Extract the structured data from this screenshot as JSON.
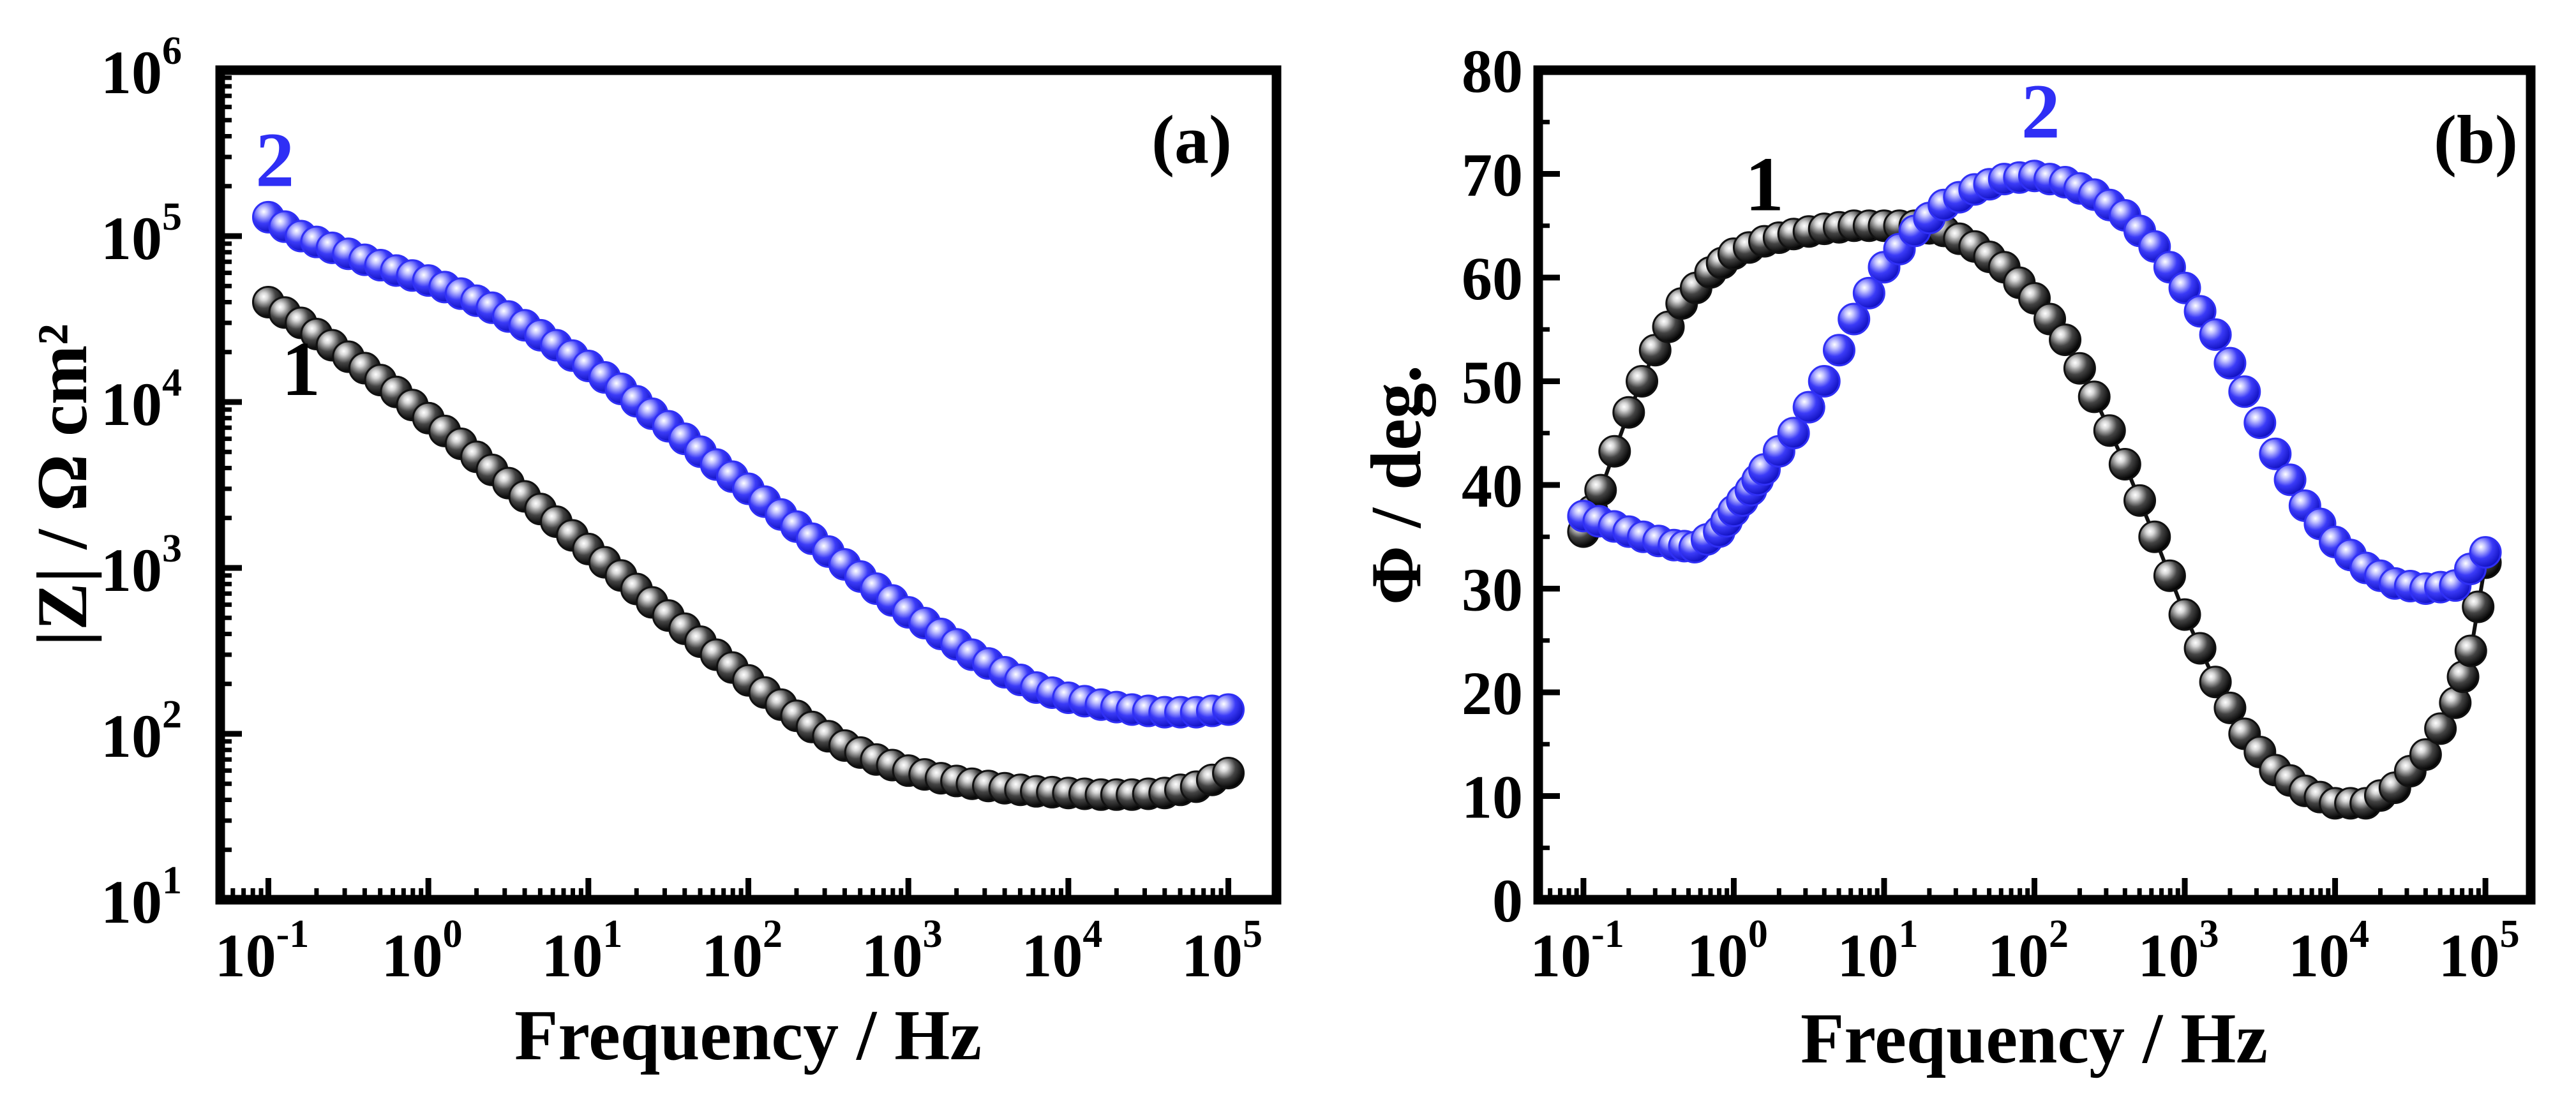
{
  "figure": {
    "colors": {
      "series_1": "#111111",
      "series_2": "#2f2ff5",
      "axis": "#000000"
    }
  },
  "chart_data": [
    {
      "type": "scatter",
      "panel_label": "(a)",
      "title": "",
      "xlabel": "Frequency / Hz",
      "ylabel": "|Z| / Ω cm²",
      "x_scale": "log",
      "y_scale": "log",
      "xlim": [
        0.05,
        200000
      ],
      "ylim": [
        10,
        1000000
      ],
      "x_ticks": [
        {
          "value": 0.1,
          "base": "10",
          "exp": "-1"
        },
        {
          "value": 1,
          "base": "10",
          "exp": "0"
        },
        {
          "value": 10,
          "base": "10",
          "exp": "1"
        },
        {
          "value": 100,
          "base": "10",
          "exp": "2"
        },
        {
          "value": 1000,
          "base": "10",
          "exp": "3"
        },
        {
          "value": 10000,
          "base": "10",
          "exp": "4"
        },
        {
          "value": 100000,
          "base": "10",
          "exp": "5"
        }
      ],
      "y_ticks": [
        {
          "value": 10,
          "base": "10",
          "exp": "1"
        },
        {
          "value": 100,
          "base": "10",
          "exp": "2"
        },
        {
          "value": 1000,
          "base": "10",
          "exp": "3"
        },
        {
          "value": 10000,
          "base": "10",
          "exp": "4"
        },
        {
          "value": 100000,
          "base": "10",
          "exp": "5"
        },
        {
          "value": 1000000,
          "base": "10",
          "exp": "6"
        }
      ],
      "series": [
        {
          "name": "1",
          "label_anchor": {
            "x": 0.16,
            "y": 11000
          },
          "connect_line": false,
          "points": [
            [
              0.1,
              40000
            ],
            [
              0.16,
              30000
            ],
            [
              0.25,
              22000
            ],
            [
              0.4,
              16000
            ],
            [
              0.63,
              11500
            ],
            [
              1,
              8000
            ],
            [
              1.6,
              5600
            ],
            [
              2.5,
              3900
            ],
            [
              4,
              2700
            ],
            [
              6.3,
              1900
            ],
            [
              10,
              1300
            ],
            [
              16,
              900
            ],
            [
              25,
              620
            ],
            [
              40,
              430
            ],
            [
              63,
              300
            ],
            [
              100,
              210
            ],
            [
              160,
              150
            ],
            [
              250,
              110
            ],
            [
              400,
              85
            ],
            [
              630,
              70
            ],
            [
              1000,
              60
            ],
            [
              1600,
              54
            ],
            [
              2500,
              50
            ],
            [
              4000,
              47
            ],
            [
              6300,
              45
            ],
            [
              10000,
              44
            ],
            [
              16000,
              43
            ],
            [
              25000,
              43
            ],
            [
              40000,
              44
            ],
            [
              63000,
              48
            ],
            [
              100000,
              58
            ]
          ]
        },
        {
          "name": "2",
          "label_anchor": {
            "x": 0.11,
            "y": 200000
          },
          "connect_line": false,
          "points": [
            [
              0.1,
              130000
            ],
            [
              0.16,
              100000
            ],
            [
              0.25,
              85000
            ],
            [
              0.4,
              72000
            ],
            [
              0.63,
              62000
            ],
            [
              1,
              54000
            ],
            [
              1.6,
              45000
            ],
            [
              2.5,
              37000
            ],
            [
              4,
              29000
            ],
            [
              6.3,
              22000
            ],
            [
              10,
              16500
            ],
            [
              16,
              12000
            ],
            [
              25,
              8500
            ],
            [
              40,
              6000
            ],
            [
              63,
              4200
            ],
            [
              100,
              3000
            ],
            [
              160,
              2100
            ],
            [
              250,
              1500
            ],
            [
              400,
              1050
            ],
            [
              630,
              750
            ],
            [
              1000,
              540
            ],
            [
              1600,
              400
            ],
            [
              2500,
              300
            ],
            [
              4000,
              235
            ],
            [
              6300,
              190
            ],
            [
              10000,
              165
            ],
            [
              16000,
              150
            ],
            [
              25000,
              140
            ],
            [
              40000,
              135
            ],
            [
              63000,
              135
            ],
            [
              100000,
              140
            ]
          ]
        }
      ]
    },
    {
      "type": "scatter",
      "panel_label": "(b)",
      "title": "",
      "xlabel": "Frequency / Hz",
      "ylabel": "Φ / deg.",
      "x_scale": "log",
      "y_scale": "linear",
      "xlim": [
        0.05,
        200000
      ],
      "ylim": [
        0,
        80
      ],
      "x_ticks": [
        {
          "value": 0.1,
          "base": "10",
          "exp": "-1"
        },
        {
          "value": 1,
          "base": "10",
          "exp": "0"
        },
        {
          "value": 10,
          "base": "10",
          "exp": "1"
        },
        {
          "value": 100,
          "base": "10",
          "exp": "2"
        },
        {
          "value": 1000,
          "base": "10",
          "exp": "3"
        },
        {
          "value": 10000,
          "base": "10",
          "exp": "4"
        },
        {
          "value": 100000,
          "base": "10",
          "exp": "5"
        }
      ],
      "y_ticks": [
        {
          "value": 0,
          "label": "0"
        },
        {
          "value": 10,
          "label": "10"
        },
        {
          "value": 20,
          "label": "20"
        },
        {
          "value": 30,
          "label": "30"
        },
        {
          "value": 40,
          "label": "40"
        },
        {
          "value": 50,
          "label": "50"
        },
        {
          "value": 60,
          "label": "60"
        },
        {
          "value": 70,
          "label": "70"
        },
        {
          "value": 80,
          "label": "80"
        }
      ],
      "series": [
        {
          "name": "1",
          "label_anchor": {
            "x": 1.6,
            "y": 66.5
          },
          "connect_line": true,
          "points": [
            [
              0.1,
              35.5
            ],
            [
              0.13,
              39.5
            ],
            [
              0.2,
              47
            ],
            [
              0.3,
              53
            ],
            [
              0.45,
              57.5
            ],
            [
              0.7,
              60.5
            ],
            [
              1,
              62.3
            ],
            [
              1.6,
              63.5
            ],
            [
              2.5,
              64.2
            ],
            [
              4,
              64.7
            ],
            [
              6.3,
              65
            ],
            [
              10,
              65
            ],
            [
              16,
              65
            ],
            [
              25,
              64.5
            ],
            [
              40,
              63
            ],
            [
              63,
              61
            ],
            [
              100,
              58
            ],
            [
              160,
              54
            ],
            [
              250,
              48.5
            ],
            [
              400,
              42
            ],
            [
              630,
              35
            ],
            [
              1000,
              27.5
            ],
            [
              1600,
              21
            ],
            [
              2500,
              16
            ],
            [
              4000,
              12.5
            ],
            [
              6300,
              10.5
            ],
            [
              10000,
              9.3
            ],
            [
              16000,
              9.3
            ],
            [
              25000,
              10.8
            ],
            [
              40000,
              14
            ],
            [
              63000,
              19
            ],
            [
              80000,
              24
            ],
            [
              100000,
              32.5
            ]
          ]
        },
        {
          "name": "2",
          "label_anchor": {
            "x": 110,
            "y": 73.5
          },
          "connect_line": false,
          "points": [
            [
              0.1,
              37
            ],
            [
              0.16,
              36
            ],
            [
              0.25,
              35
            ],
            [
              0.4,
              34.2
            ],
            [
              0.55,
              34
            ],
            [
              0.8,
              35.5
            ],
            [
              1,
              37.5
            ],
            [
              1.3,
              39.5
            ],
            [
              1.6,
              41.5
            ],
            [
              2.5,
              45
            ],
            [
              4,
              50
            ],
            [
              6.3,
              56
            ],
            [
              10,
              61
            ],
            [
              16,
              64.5
            ],
            [
              25,
              67
            ],
            [
              40,
              68.5
            ],
            [
              63,
              69.5
            ],
            [
              100,
              69.8
            ],
            [
              160,
              69.2
            ],
            [
              250,
              68
            ],
            [
              400,
              66
            ],
            [
              630,
              63
            ],
            [
              1000,
              59
            ],
            [
              1600,
              54.5
            ],
            [
              2500,
              49
            ],
            [
              4000,
              43
            ],
            [
              6300,
              38
            ],
            [
              10000,
              34.5
            ],
            [
              16000,
              32
            ],
            [
              25000,
              30.5
            ],
            [
              40000,
              30
            ],
            [
              63000,
              30.3
            ],
            [
              100000,
              33.5
            ]
          ]
        }
      ]
    }
  ]
}
